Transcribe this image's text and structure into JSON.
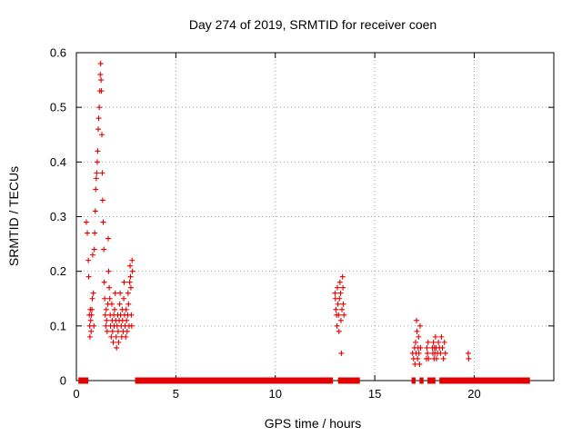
{
  "chart_data": {
    "type": "scatter",
    "title": "Day 274 of 2019, SRMTID for receiver coen",
    "xlabel": "GPS time / hours",
    "ylabel": "SRMTID / TECUs",
    "xlim": [
      0,
      24
    ],
    "ylim": [
      0,
      0.6
    ],
    "xticks": [
      0,
      5,
      10,
      15,
      20
    ],
    "xtick_labels": [
      "0",
      "5",
      "10",
      "15",
      "20"
    ],
    "yticks": [
      0,
      0.1,
      0.2,
      0.3,
      0.4,
      0.5,
      0.6
    ],
    "ytick_labels": [
      "0",
      "0.1",
      "0.2",
      "0.3",
      "0.4",
      "0.5",
      "0.6"
    ],
    "grid": true,
    "marker": "+",
    "color": "#e00000",
    "series": [
      {
        "name": "SRMTID",
        "points": [
          [
            0.5,
            0.29
          ],
          [
            0.55,
            0.27
          ],
          [
            0.6,
            0.22
          ],
          [
            0.62,
            0.19
          ],
          [
            0.65,
            0.12
          ],
          [
            0.67,
            0.1
          ],
          [
            0.68,
            0.08
          ],
          [
            0.7,
            0.13
          ],
          [
            0.72,
            0.11
          ],
          [
            0.74,
            0.09
          ],
          [
            0.76,
            0.12
          ],
          [
            0.78,
            0.13
          ],
          [
            0.8,
            0.15
          ],
          [
            0.82,
            0.23
          ],
          [
            0.85,
            0.16
          ],
          [
            0.88,
            0.1
          ],
          [
            0.9,
            0.24
          ],
          [
            0.92,
            0.27
          ],
          [
            0.95,
            0.31
          ],
          [
            0.97,
            0.35
          ],
          [
            1.0,
            0.37
          ],
          [
            1.02,
            0.38
          ],
          [
            1.05,
            0.4
          ],
          [
            1.07,
            0.42
          ],
          [
            1.1,
            0.46
          ],
          [
            1.12,
            0.48
          ],
          [
            1.15,
            0.5
          ],
          [
            1.18,
            0.53
          ],
          [
            1.2,
            0.56
          ],
          [
            1.22,
            0.58
          ],
          [
            1.24,
            0.55
          ],
          [
            1.26,
            0.53
          ],
          [
            1.28,
            0.45
          ],
          [
            1.3,
            0.38
          ],
          [
            1.32,
            0.33
          ],
          [
            1.35,
            0.29
          ],
          [
            1.38,
            0.24
          ],
          [
            1.4,
            0.18
          ],
          [
            1.42,
            0.15
          ],
          [
            1.45,
            0.12
          ],
          [
            1.48,
            0.1
          ],
          [
            1.5,
            0.13
          ],
          [
            1.52,
            0.11
          ],
          [
            1.55,
            0.09
          ],
          [
            1.58,
            0.14
          ],
          [
            1.6,
            0.26
          ],
          [
            1.62,
            0.2
          ],
          [
            1.65,
            0.17
          ],
          [
            1.68,
            0.15
          ],
          [
            1.7,
            0.12
          ],
          [
            1.72,
            0.1
          ],
          [
            1.75,
            0.08
          ],
          [
            1.78,
            0.14
          ],
          [
            1.8,
            0.11
          ],
          [
            1.82,
            0.09
          ],
          [
            1.85,
            0.07
          ],
          [
            1.88,
            0.12
          ],
          [
            1.9,
            0.1
          ],
          [
            1.92,
            0.13
          ],
          [
            1.95,
            0.16
          ],
          [
            1.98,
            0.11
          ],
          [
            2.0,
            0.08
          ],
          [
            2.02,
            0.06
          ],
          [
            2.05,
            0.1
          ],
          [
            2.08,
            0.12
          ],
          [
            2.1,
            0.09
          ],
          [
            2.12,
            0.07
          ],
          [
            2.15,
            0.11
          ],
          [
            2.18,
            0.14
          ],
          [
            2.2,
            0.16
          ],
          [
            2.22,
            0.12
          ],
          [
            2.25,
            0.1
          ],
          [
            2.28,
            0.08
          ],
          [
            2.3,
            0.13
          ],
          [
            2.32,
            0.11
          ],
          [
            2.35,
            0.09
          ],
          [
            2.38,
            0.15
          ],
          [
            2.4,
            0.18
          ],
          [
            2.42,
            0.12
          ],
          [
            2.45,
            0.1
          ],
          [
            2.48,
            0.08
          ],
          [
            2.5,
            0.13
          ],
          [
            2.52,
            0.11
          ],
          [
            2.55,
            0.09
          ],
          [
            2.58,
            0.12
          ],
          [
            2.6,
            0.16
          ],
          [
            2.62,
            0.14
          ],
          [
            2.65,
            0.1
          ],
          [
            2.68,
            0.18
          ],
          [
            2.7,
            0.21
          ],
          [
            2.72,
            0.19
          ],
          [
            2.74,
            0.17
          ],
          [
            2.76,
            0.12
          ],
          [
            2.78,
            0.1
          ],
          [
            2.8,
            0.22
          ],
          [
            2.82,
            0.2
          ],
          [
            13.0,
            0.16
          ],
          [
            13.02,
            0.15
          ],
          [
            13.05,
            0.13
          ],
          [
            13.08,
            0.12
          ],
          [
            13.1,
            0.1
          ],
          [
            13.12,
            0.17
          ],
          [
            13.15,
            0.14
          ],
          [
            13.18,
            0.12
          ],
          [
            13.2,
            0.09
          ],
          [
            13.22,
            0.15
          ],
          [
            13.25,
            0.18
          ],
          [
            13.28,
            0.16
          ],
          [
            13.3,
            0.11
          ],
          [
            13.32,
            0.05
          ],
          [
            13.35,
            0.13
          ],
          [
            13.38,
            0.19
          ],
          [
            13.4,
            0.17
          ],
          [
            13.42,
            0.14
          ],
          [
            13.45,
            0.12
          ],
          [
            16.9,
            0.05
          ],
          [
            16.95,
            0.04
          ],
          [
            17.0,
            0.06
          ],
          [
            17.02,
            0.03
          ],
          [
            17.05,
            0.07
          ],
          [
            17.08,
            0.05
          ],
          [
            17.1,
            0.11
          ],
          [
            17.12,
            0.09
          ],
          [
            17.15,
            0.04
          ],
          [
            17.18,
            0.06
          ],
          [
            17.2,
            0.08
          ],
          [
            17.22,
            0.05
          ],
          [
            17.25,
            0.03
          ],
          [
            17.28,
            0.1
          ],
          [
            17.3,
            0.06
          ],
          [
            17.6,
            0.04
          ],
          [
            17.62,
            0.06
          ],
          [
            17.65,
            0.05
          ],
          [
            17.68,
            0.07
          ],
          [
            17.7,
            0.04
          ],
          [
            17.9,
            0.06
          ],
          [
            17.92,
            0.05
          ],
          [
            17.95,
            0.07
          ],
          [
            17.98,
            0.04
          ],
          [
            18.0,
            0.06
          ],
          [
            18.02,
            0.05
          ],
          [
            18.05,
            0.08
          ],
          [
            18.08,
            0.06
          ],
          [
            18.1,
            0.04
          ],
          [
            18.15,
            0.05
          ],
          [
            18.2,
            0.07
          ],
          [
            18.25,
            0.06
          ],
          [
            18.3,
            0.05
          ],
          [
            18.35,
            0.08
          ],
          [
            18.4,
            0.06
          ],
          [
            18.45,
            0.04
          ],
          [
            18.5,
            0.07
          ],
          [
            18.55,
            0.05
          ],
          [
            19.7,
            0.05
          ],
          [
            19.72,
            0.04
          ]
        ],
        "baseline_segments": [
          [
            0.1,
            0.6
          ],
          [
            2.95,
            12.9
          ],
          [
            13.15,
            14.25
          ],
          [
            16.85,
            17.05
          ],
          [
            17.25,
            17.45
          ],
          [
            17.65,
            18.05
          ],
          [
            18.25,
            22.8
          ]
        ]
      }
    ]
  }
}
